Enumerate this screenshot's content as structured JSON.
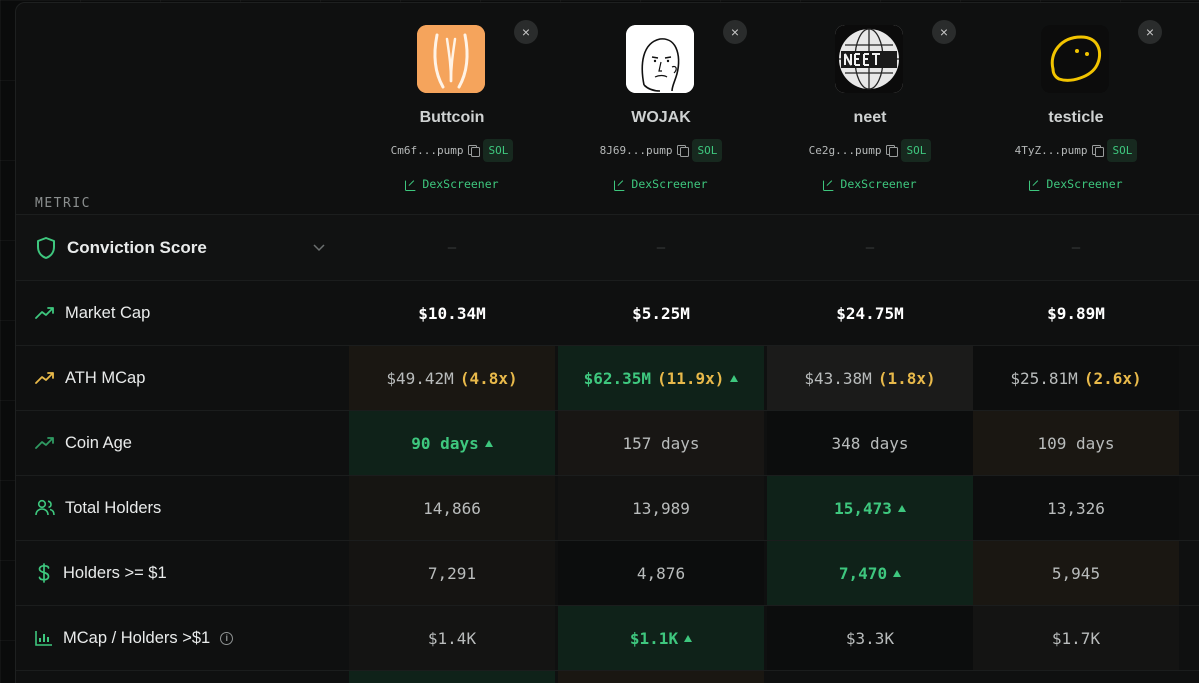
{
  "header": {
    "metric_label": "METRIC"
  },
  "coins": [
    {
      "name": "Buttcoin",
      "address": "Cm6f...pump",
      "chain": "SOL",
      "link": "DexScreener",
      "close": "×",
      "icon_bg": "#f5a45c"
    },
    {
      "name": "WOJAK",
      "address": "8J69...pump",
      "chain": "SOL",
      "link": "DexScreener",
      "close": "×",
      "icon_bg": "#ffffff"
    },
    {
      "name": "neet",
      "address": "Ce2g...pump",
      "chain": "SOL",
      "link": "DexScreener",
      "close": "×",
      "icon_bg": "#f2f2f2"
    },
    {
      "name": "testicle",
      "address": "4TyZ...pump",
      "chain": "SOL",
      "link": "DexScreener",
      "close": "×",
      "icon_bg": "#0c0c0c"
    }
  ],
  "rows": {
    "conviction": {
      "label": "Conviction Score",
      "icon": "shield-icon",
      "values": [
        "—",
        "—",
        "—",
        "—"
      ]
    },
    "market_cap": {
      "label": "Market Cap",
      "icon": "trending-up-icon",
      "values": [
        "$10.34M",
        "$5.25M",
        "$24.75M",
        "$9.89M"
      ]
    },
    "ath_mcap": {
      "label": "ATH MCap",
      "icon": "trending-up-icon",
      "values": [
        "$49.42M",
        "$62.35M",
        "$43.38M",
        "$25.81M"
      ],
      "multiples": [
        "(4.8x)",
        "(11.9x)",
        "(1.8x)",
        "(2.6x)"
      ]
    },
    "coin_age": {
      "label": "Coin Age",
      "icon": "trending-up-icon",
      "values": [
        "90 days",
        "157 days",
        "348 days",
        "109 days"
      ]
    },
    "total_holders": {
      "label": "Total Holders",
      "icon": "users-icon",
      "values": [
        "14,866",
        "13,989",
        "15,473",
        "13,326"
      ]
    },
    "holders_1": {
      "label": "Holders >= $1",
      "icon": "dollar-icon",
      "values": [
        "7,291",
        "4,876",
        "7,470",
        "5,945"
      ]
    },
    "mcap_holders": {
      "label": "MCap / Holders >$1",
      "icon": "bar-chart-icon",
      "info": "i",
      "values": [
        "$1.4K",
        "$1.1K",
        "$3.3K",
        "$1.7K"
      ]
    }
  },
  "colors": {
    "accent_green": "#3ec77e",
    "accent_gold": "#e8b94a",
    "panel_bg": "#0f1010"
  }
}
